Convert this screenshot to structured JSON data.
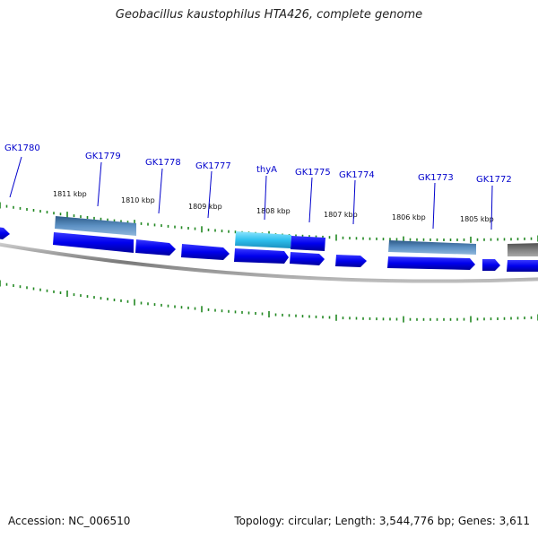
{
  "title": "Geobacillus kaustophilus HTA426, complete genome",
  "footer": {
    "accession_label": "Accession:",
    "accession": "NC_006510",
    "topology_label": "Topology:",
    "topology": "circular",
    "length_label": "Length:",
    "length": "3,544,776 bp",
    "genes_label": "Genes:",
    "genes": "3,611"
  },
  "colors": {
    "gene_blue": "#0000ee",
    "gene_highlight": "#2fc0ee",
    "gene_other": "#4a7fb5",
    "gene_gray": "#707070",
    "label_blue": "#0000cc",
    "tick_green": "#228822",
    "backbone": "#888888"
  },
  "ruler": {
    "unit": "kbp",
    "labels": [
      "1811 kbp",
      "1810 kbp",
      "1809 kbp",
      "1808 kbp",
      "1807 kbp",
      "1806 kbp",
      "1805 kbp"
    ]
  },
  "gene_labels": [
    "GK1780",
    "GK1779",
    "GK1778",
    "GK1777",
    "thyA",
    "GK1775",
    "GK1774",
    "GK1773",
    "GK1772"
  ],
  "genes": [
    {
      "id": "g1",
      "strand": "minus",
      "type": "cds"
    },
    {
      "id": "g2",
      "strand": "plus",
      "type": "other"
    },
    {
      "id": "g3",
      "strand": "minus",
      "type": "cds"
    },
    {
      "id": "g4",
      "strand": "minus",
      "type": "cds"
    },
    {
      "id": "g5",
      "strand": "minus",
      "type": "cds"
    },
    {
      "id": "g6",
      "strand": "plus",
      "type": "highlight"
    },
    {
      "id": "g7",
      "strand": "minus",
      "type": "cds"
    },
    {
      "id": "g8",
      "strand": "plus",
      "type": "cds"
    },
    {
      "id": "g9",
      "strand": "minus",
      "type": "cds"
    },
    {
      "id": "g10",
      "strand": "minus",
      "type": "cds"
    },
    {
      "id": "g11",
      "strand": "plus",
      "type": "other"
    },
    {
      "id": "g12",
      "strand": "minus",
      "type": "cds"
    },
    {
      "id": "g13",
      "strand": "minus",
      "type": "cds"
    },
    {
      "id": "g14",
      "strand": "minus",
      "type": "cds"
    },
    {
      "id": "g15",
      "strand": "plus",
      "type": "gray"
    }
  ]
}
